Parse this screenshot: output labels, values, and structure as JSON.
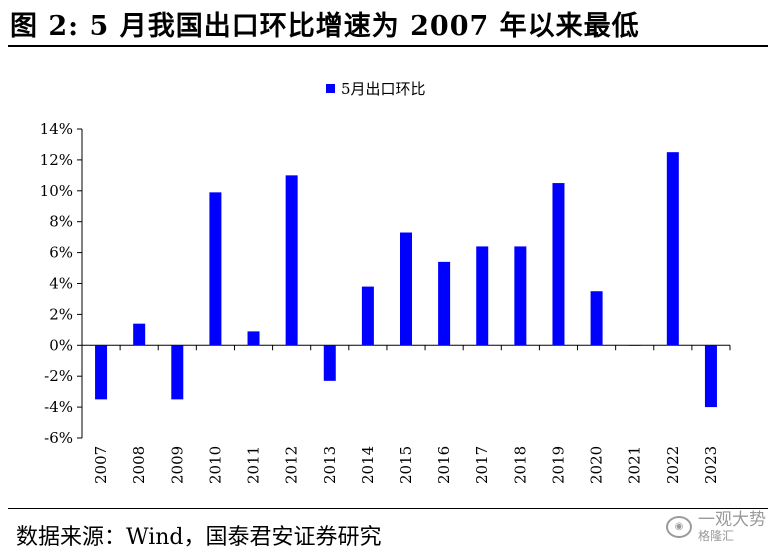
{
  "title": "图 2:  5 月我国出口环比增速为 2007 年以来最低",
  "source": "数据来源：Wind，国泰君安证券研究",
  "watermark": {
    "main": "一观大势",
    "sub": "格隆汇"
  },
  "colors": {
    "bar": "#0000ff",
    "axis": "#000000"
  },
  "chart_data": {
    "type": "bar",
    "categories": [
      "2007",
      "2008",
      "2009",
      "2010",
      "2011",
      "2012",
      "2013",
      "2014",
      "2015",
      "2016",
      "2017",
      "2018",
      "2019",
      "2020",
      "2021",
      "2022",
      "2023"
    ],
    "series": [
      {
        "name": "5月出口环比",
        "values": [
          -3.5,
          1.4,
          -3.5,
          9.9,
          0.9,
          11.0,
          -2.3,
          3.8,
          7.3,
          5.4,
          6.4,
          6.4,
          10.5,
          3.5,
          0.0,
          12.5,
          -4.0
        ]
      }
    ],
    "ylim": [
      -6,
      14
    ],
    "yticks": [
      -6,
      -4,
      -2,
      0,
      2,
      4,
      6,
      8,
      10,
      12,
      14
    ],
    "ytick_labels": [
      "-6%",
      "-4%",
      "-2%",
      "0%",
      "2%",
      "4%",
      "6%",
      "8%",
      "10%",
      "12%",
      "14%"
    ],
    "legend_position": "top-center",
    "grid": false
  }
}
